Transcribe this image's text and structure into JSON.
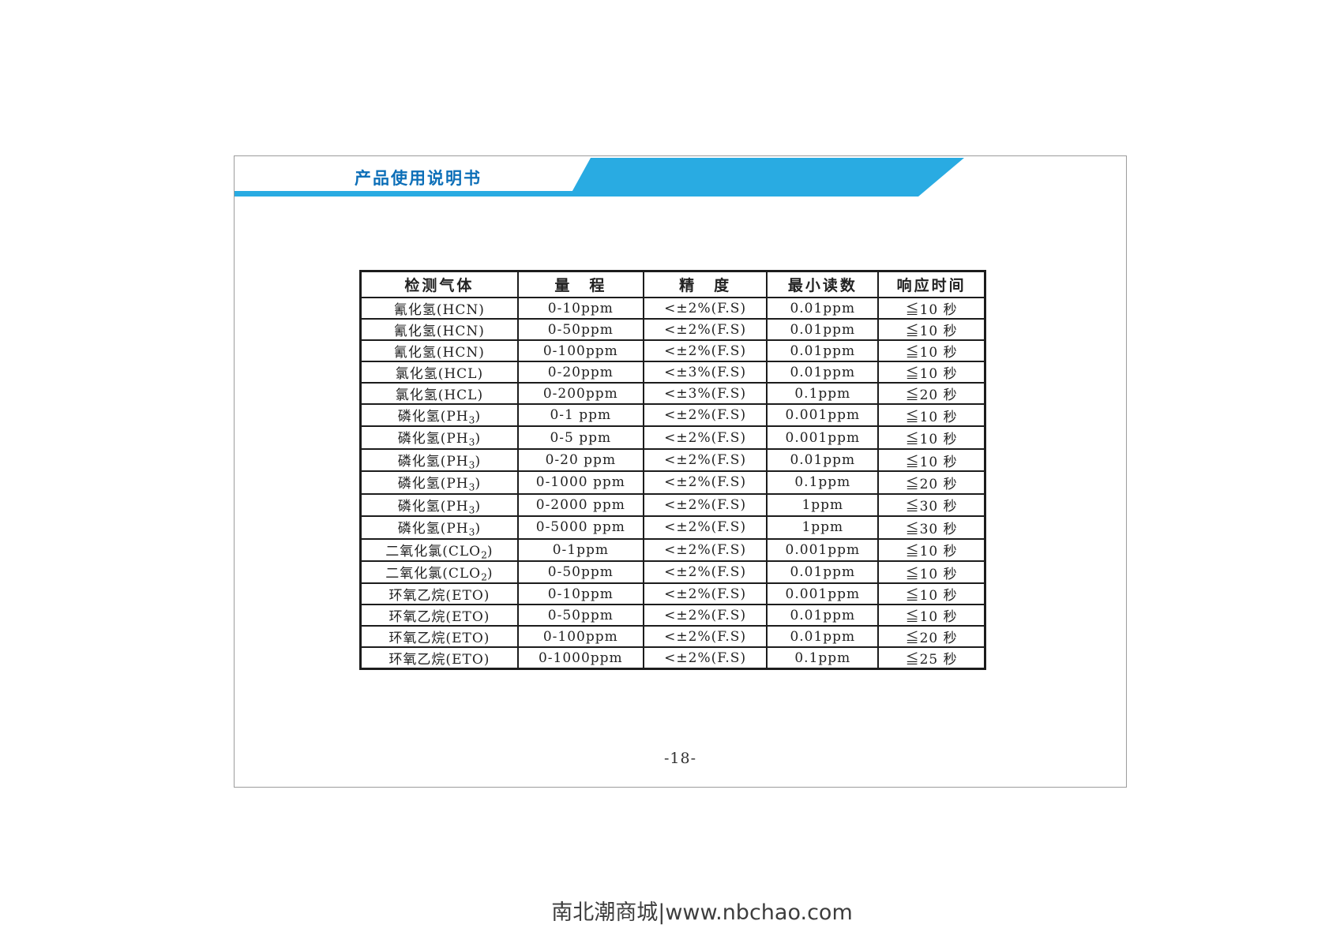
{
  "header": {
    "title": "产品使用说明书"
  },
  "table": {
    "columns": [
      "检测气体",
      "量　程",
      "精　度",
      "最小读数",
      "响应时间"
    ],
    "rows": [
      [
        "氰化氢(HCN)",
        "0-10ppm",
        "<±2%(F.S)",
        "0.01ppm",
        "≦10 秒"
      ],
      [
        "氰化氢(HCN)",
        "0-50ppm",
        "<±2%(F.S)",
        "0.01ppm",
        "≦10 秒"
      ],
      [
        "氰化氢(HCN)",
        "0-100ppm",
        "<±2%(F.S)",
        "0.01ppm",
        "≦10 秒"
      ],
      [
        "氯化氢(HCL)",
        "0-20ppm",
        "<±3%(F.S)",
        "0.01ppm",
        "≦10 秒"
      ],
      [
        "氯化氢(HCL)",
        "0-200ppm",
        "<±3%(F.S)",
        "0.1ppm",
        "≦20 秒"
      ],
      [
        "磷化氢(PH3)",
        "0-1 ppm",
        "<±2%(F.S)",
        "0.001ppm",
        "≦10 秒"
      ],
      [
        "磷化氢(PH3)",
        "0-5 ppm",
        "<±2%(F.S)",
        "0.001ppm",
        "≦10 秒"
      ],
      [
        "磷化氢(PH3)",
        "0-20 ppm",
        "<±2%(F.S)",
        "0.01ppm",
        "≦10 秒"
      ],
      [
        "磷化氢(PH3)",
        "0-1000 ppm",
        "<±2%(F.S)",
        "0.1ppm",
        "≦20 秒"
      ],
      [
        "磷化氢(PH3)",
        "0-2000 ppm",
        "<±2%(F.S)",
        "1ppm",
        "≦30 秒"
      ],
      [
        "磷化氢(PH3)",
        "0-5000 ppm",
        "<±2%(F.S)",
        "1ppm",
        "≦30 秒"
      ],
      [
        "二氧化氯(CLO2)",
        "0-1ppm",
        "<±2%(F.S)",
        "0.001ppm",
        "≦10 秒"
      ],
      [
        "二氧化氯(CLO2)",
        "0-50ppm",
        "<±2%(F.S)",
        "0.01ppm",
        "≦10 秒"
      ],
      [
        "环氧乙烷(ETO)",
        "0-10ppm",
        "<±2%(F.S)",
        "0.001ppm",
        "≦10 秒"
      ],
      [
        "环氧乙烷(ETO)",
        "0-50ppm",
        "<±2%(F.S)",
        "0.01ppm",
        "≦10 秒"
      ],
      [
        "环氧乙烷(ETO)",
        "0-100ppm",
        "<±2%(F.S)",
        "0.01ppm",
        "≦20 秒"
      ],
      [
        "环氧乙烷(ETO)",
        "0-1000ppm",
        "<±2%(F.S)",
        "0.1ppm",
        "≦25 秒"
      ]
    ]
  },
  "page": {
    "number": "-18-"
  },
  "footer": {
    "watermark": "南北潮商城|www.nbchao.com"
  },
  "colors": {
    "banner_blue": "#29abe2",
    "title_blue": "#0d6fb8",
    "table_border": "#1c1c1c"
  }
}
